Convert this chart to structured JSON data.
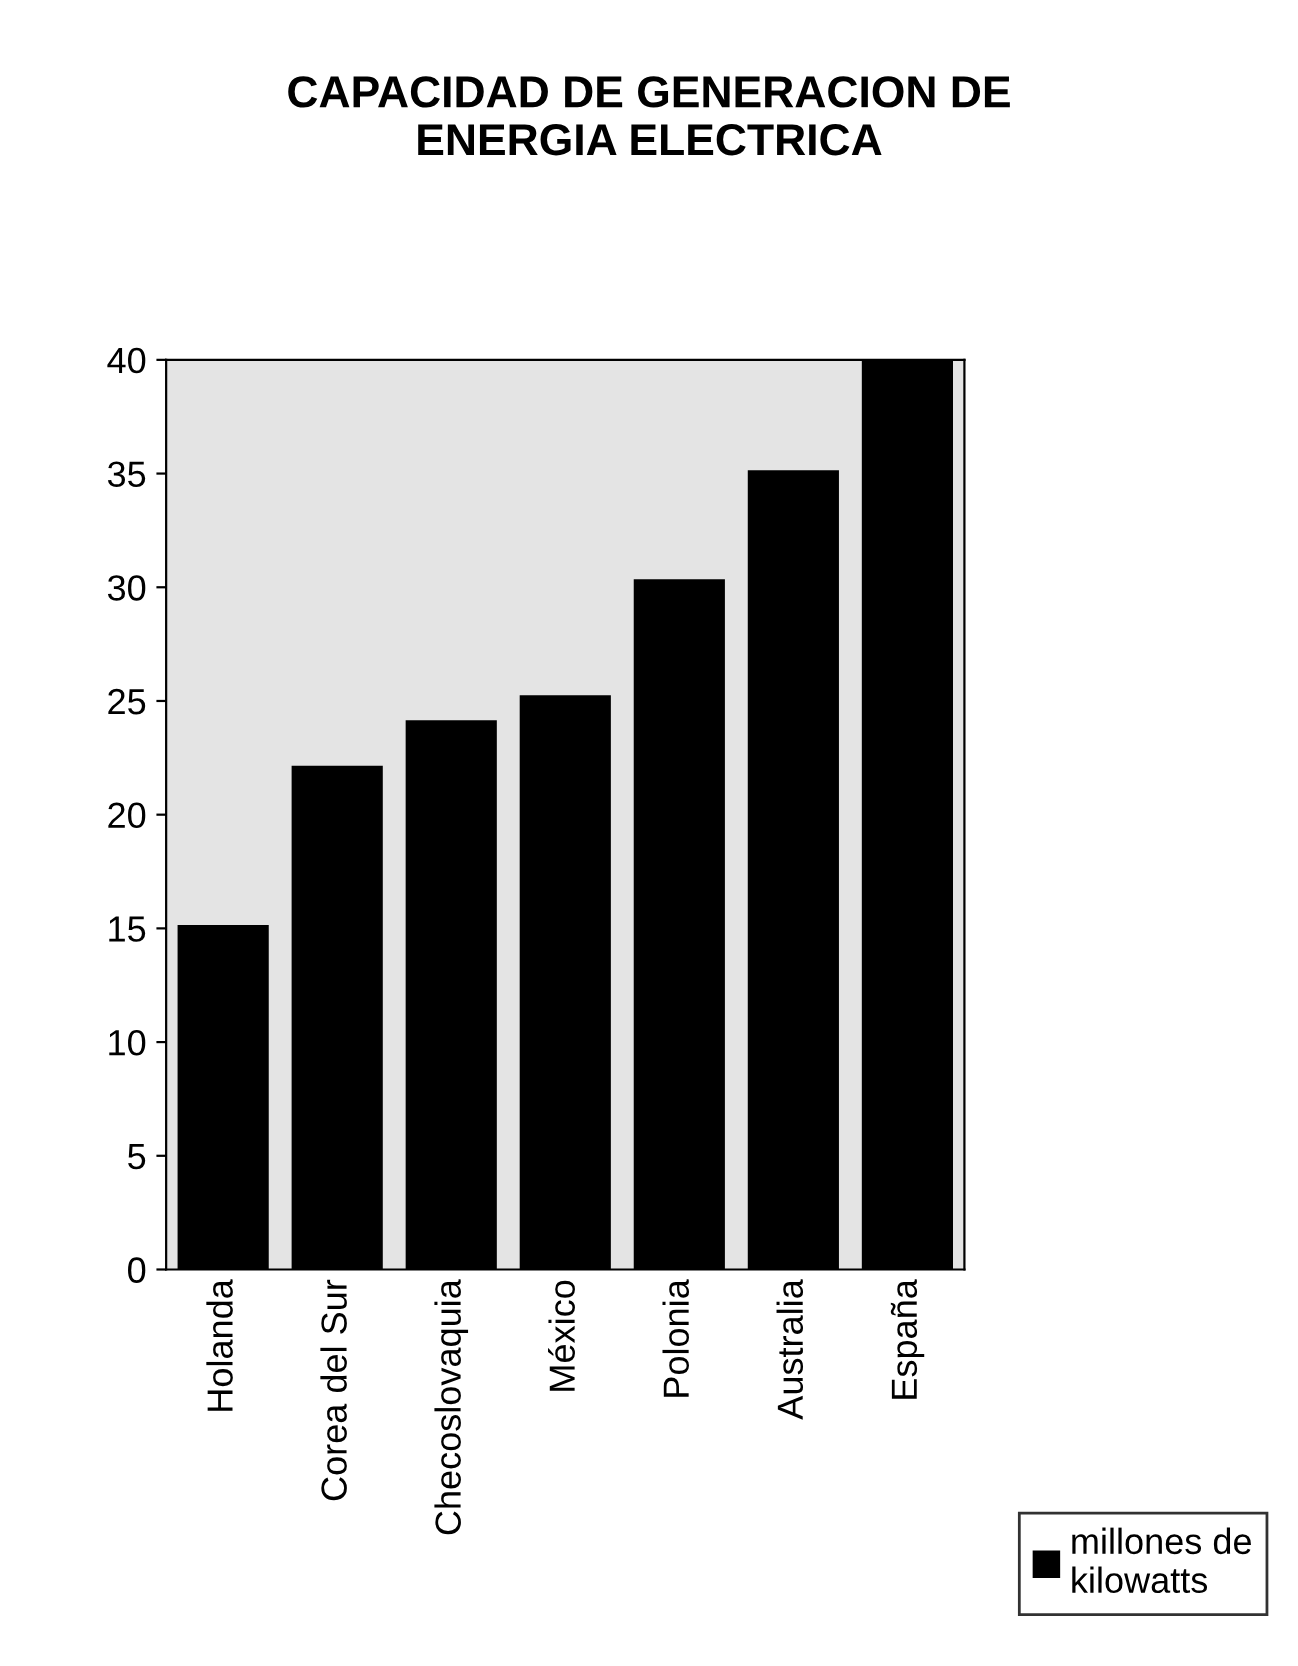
{
  "chart_data": {
    "type": "bar",
    "title": "CAPACIDAD DE GENERACION DE\nENERGIA ELECTRICA",
    "categories": [
      "Holanda",
      "Corea del Sur",
      "Checoslovaquia",
      "México",
      "Polonia",
      "Australia",
      "España"
    ],
    "series": [
      {
        "name": "millones de\nkilowatts",
        "color": "#000000",
        "values": [
          15.1,
          22.1,
          24.1,
          25.2,
          30.3,
          35.1,
          40
        ]
      }
    ],
    "ylim": [
      0,
      40
    ],
    "yticks": [
      0,
      5,
      10,
      15,
      20,
      25,
      30,
      35,
      40
    ],
    "grid": false,
    "legend": "bottom right"
  }
}
